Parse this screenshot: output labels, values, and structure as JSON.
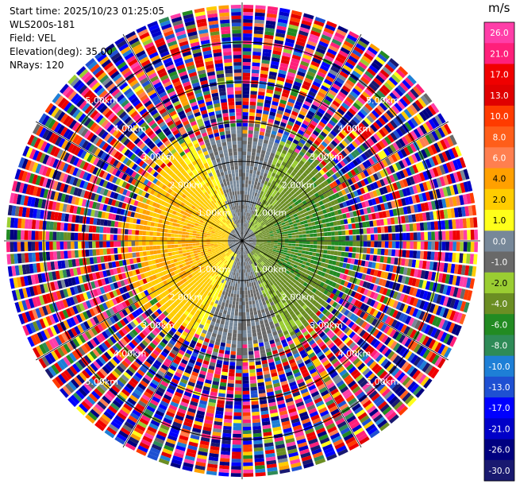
{
  "header": {
    "start_time": "Start time: 2025/10/23 01:25:05",
    "instrument": "WLS200s-181",
    "field": "Field: VEL",
    "elevation": "Elevation(deg): 35.00",
    "nrays": "NRays: 120"
  },
  "chart_data": {
    "type": "ppi-polar-heatmap",
    "field": "VEL",
    "units": "m/s",
    "elevation_deg": 35.0,
    "n_rays": 120,
    "max_range_km": 6.0,
    "range_rings_km": [
      1.0,
      2.0,
      3.0,
      4.0,
      5.0
    ],
    "ring_labels": [
      "1.00km",
      "2.00km",
      "3.00km",
      "4.00km",
      "5.00km"
    ],
    "colorbar": {
      "title": "m/s",
      "range": [
        -30.0,
        30.0
      ],
      "ticks": [
        "26.0",
        "21.0",
        "17.0",
        "13.0",
        "10.0",
        "8.0",
        "6.0",
        "4.0",
        "2.0",
        "1.0",
        "0.0",
        "-1.0",
        "-2.0",
        "-4.0",
        "-6.0",
        "-8.0",
        "-10.0",
        "-13.0",
        "-17.0",
        "-21.0",
        "-26.0",
        "-30.0"
      ],
      "colors": [
        "#ff3ea8",
        "#ff1f7a",
        "#f00000",
        "#e00000",
        "#ff3b00",
        "#ff5e1a",
        "#ff7f4f",
        "#ffa000",
        "#ffcc00",
        "#ffff1a",
        "#778899",
        "#696969",
        "#9acd32",
        "#6b8e23",
        "#228b22",
        "#2e8b57",
        "#1e7fd6",
        "#1e50d2",
        "#0000ff",
        "#0000c8",
        "#000080",
        "#191970"
      ]
    },
    "structure": {
      "approaching_sector": "east, negative velocities about -1 to -6 m/s within ~2.5 km",
      "receding_sector": "west, positive velocities about 1 to 6 m/s within ~2.5 km",
      "near_zero_sector": "north-south band near 0 m/s",
      "noise_beyond_km": 3.0
    }
  }
}
